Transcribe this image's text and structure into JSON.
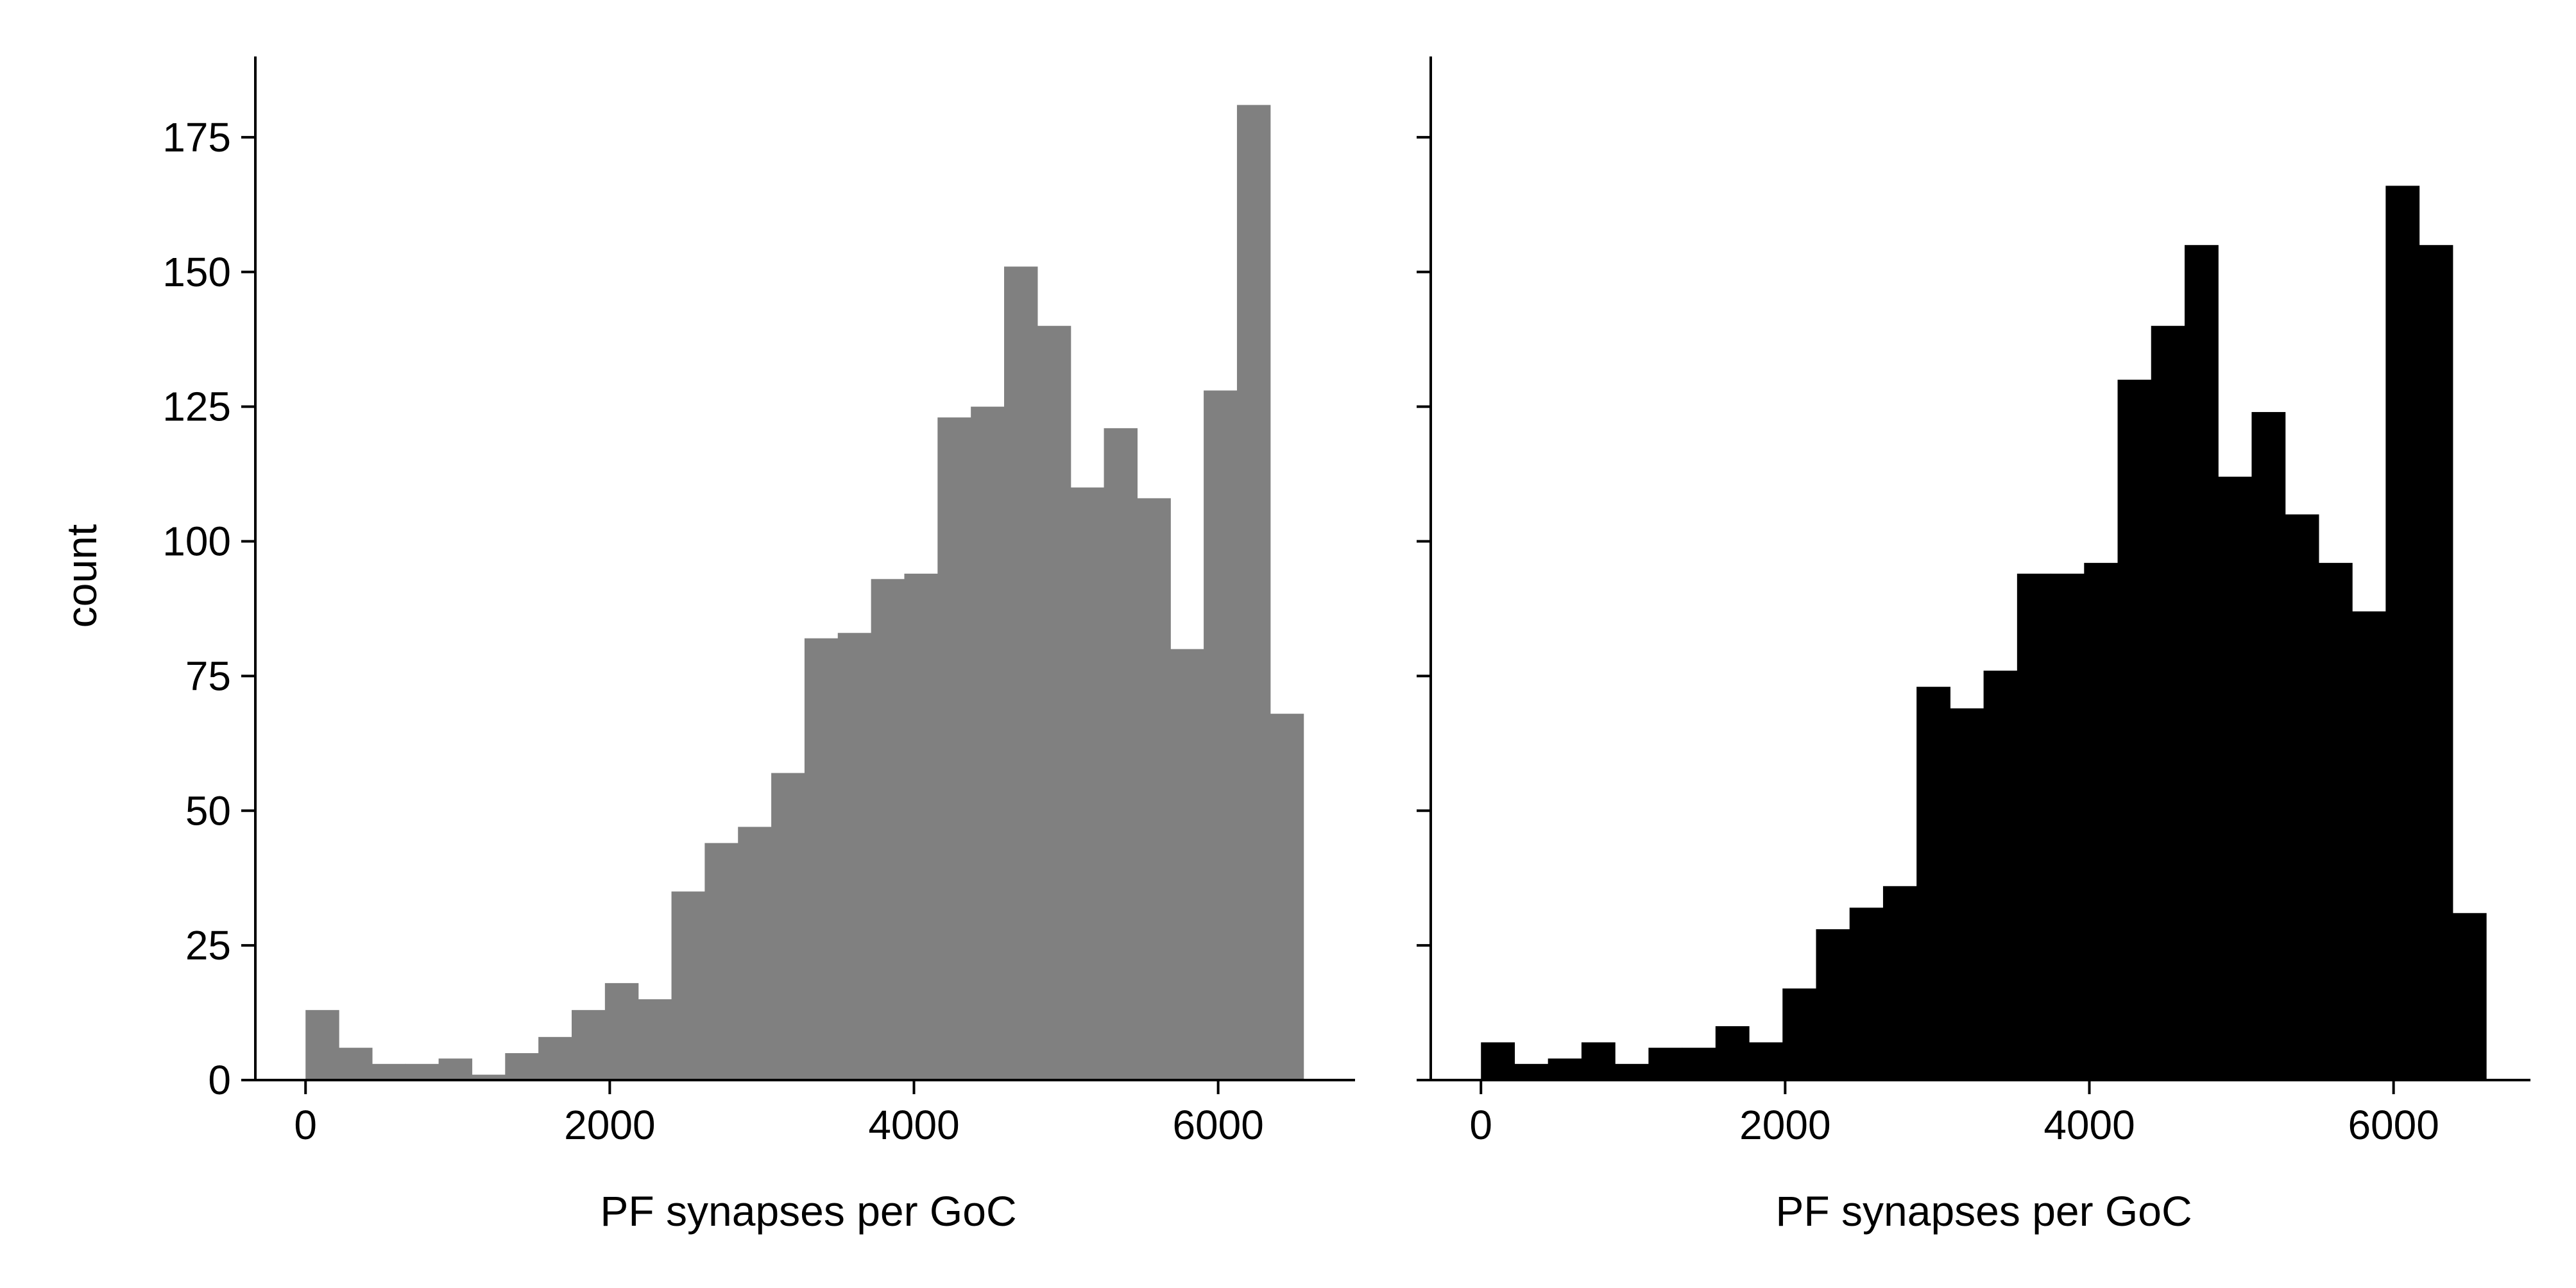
{
  "figure": {
    "background": "#ffffff"
  },
  "chart_data": [
    {
      "type": "bar",
      "subtype": "histogram",
      "title": "",
      "xlabel": "PF synapses per GoC",
      "ylabel": "count",
      "color": "#808080",
      "xlim": [
        -330,
        6900
      ],
      "ylim": [
        0,
        190
      ],
      "xticks": [
        0,
        2000,
        4000,
        6000
      ],
      "xtick_labels": [
        "0",
        "2000",
        "4000",
        "6000"
      ],
      "yticks": [
        0,
        25,
        50,
        75,
        100,
        125,
        150,
        175
      ],
      "ytick_labels": [
        "0",
        "25",
        "50",
        "75",
        "100",
        "125",
        "150",
        "175"
      ],
      "bin_start": 0,
      "bin_width": 218.7,
      "values": [
        13,
        6,
        3,
        3,
        4,
        1,
        5,
        8,
        13,
        18,
        15,
        35,
        44,
        47,
        57,
        82,
        83,
        93,
        94,
        123,
        125,
        151,
        140,
        110,
        121,
        108,
        80,
        128,
        181,
        68
      ],
      "grid": false
    },
    {
      "type": "bar",
      "subtype": "histogram",
      "title": "",
      "xlabel": "PF synapses per GoC",
      "ylabel": "",
      "color": "#000000",
      "xlim": [
        -330,
        6900
      ],
      "ylim": [
        0,
        190
      ],
      "xticks": [
        0,
        2000,
        4000,
        6000
      ],
      "xtick_labels": [
        "0",
        "2000",
        "4000",
        "6000"
      ],
      "yticks": [
        0,
        25,
        50,
        75,
        100,
        125,
        150,
        175
      ],
      "ytick_labels": [
        "",
        "",
        "",
        "",
        "",
        "",
        "",
        ""
      ],
      "bin_start": 0,
      "bin_width": 220.3,
      "values": [
        7,
        3,
        4,
        7,
        3,
        6,
        6,
        10,
        7,
        17,
        28,
        32,
        36,
        73,
        69,
        76,
        94,
        94,
        96,
        130,
        140,
        155,
        112,
        124,
        105,
        96,
        87,
        166,
        155,
        31
      ],
      "grid": false
    }
  ]
}
